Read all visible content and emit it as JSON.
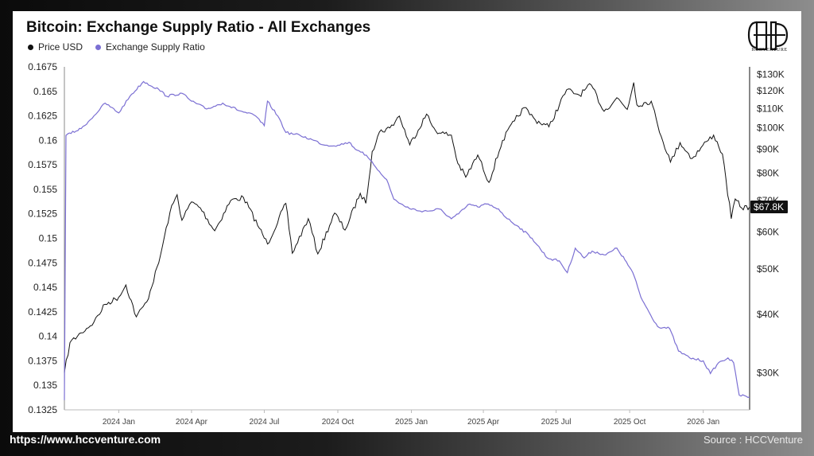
{
  "footer": {
    "url": "https://www.hccventure.com",
    "source": "Source : HCCVenture"
  },
  "logo": {
    "text": "HCCVENTURE",
    "icon": "hcc-monogram-icon"
  },
  "chart_data": {
    "type": "line",
    "title": "Bitcoin: Exchange Supply Ratio - All Exchanges",
    "legend_placement": "top-left",
    "grid": false,
    "colors": {
      "price": "#111111",
      "ratio": "#7b6fd3",
      "last_label_bg": "#111111"
    },
    "x_axis": {
      "range": [
        "2023-10-25",
        "2026-02-28"
      ],
      "ticks": [
        {
          "date": "2024-01-01",
          "label": "2024 Jan"
        },
        {
          "date": "2024-04-01",
          "label": "2024 Apr"
        },
        {
          "date": "2024-07-01",
          "label": "2024 Jul"
        },
        {
          "date": "2024-10-01",
          "label": "2024 Oct"
        },
        {
          "date": "2025-01-01",
          "label": "2025 Jan"
        },
        {
          "date": "2025-04-01",
          "label": "2025 Apr"
        },
        {
          "date": "2025-07-01",
          "label": "2025 Jul"
        },
        {
          "date": "2025-10-01",
          "label": "2025 Oct"
        },
        {
          "date": "2026-01-01",
          "label": "2026 Jan"
        }
      ]
    },
    "y_left": {
      "range": [
        0.1325,
        0.1675
      ],
      "ticks": [
        "0.1325",
        "0.135",
        "0.1375",
        "0.14",
        "0.1425",
        "0.145",
        "0.1475",
        "0.15",
        "0.1525",
        "0.155",
        "0.1575",
        "0.16",
        "0.1625",
        "0.165",
        "0.1675"
      ]
    },
    "y_right": {
      "scale": "log",
      "range": [
        25000,
        135000
      ],
      "ticks": [
        {
          "value": 30000,
          "label": "$30K"
        },
        {
          "value": 40000,
          "label": "$40K"
        },
        {
          "value": 50000,
          "label": "$50K"
        },
        {
          "value": 60000,
          "label": "$60K"
        },
        {
          "value": 70000,
          "label": "$70K"
        },
        {
          "value": 80000,
          "label": "$80K"
        },
        {
          "value": 90000,
          "label": "$90K"
        },
        {
          "value": 100000,
          "label": "$100K"
        },
        {
          "value": 110000,
          "label": "$110K"
        },
        {
          "value": 120000,
          "label": "$120K"
        },
        {
          "value": 130000,
          "label": "$130K"
        }
      ],
      "last_value_label": "$67.8K"
    },
    "series": [
      {
        "name": "Price USD",
        "axis": "right",
        "points": [
          [
            "2023-10-25",
            30000
          ],
          [
            "2023-11-01",
            34800
          ],
          [
            "2023-11-15",
            36500
          ],
          [
            "2023-12-01",
            38500
          ],
          [
            "2023-12-15",
            42000
          ],
          [
            "2024-01-01",
            43500
          ],
          [
            "2024-01-10",
            46200
          ],
          [
            "2024-01-23",
            39500
          ],
          [
            "2024-02-05",
            42500
          ],
          [
            "2024-02-20",
            51500
          ],
          [
            "2024-03-05",
            66000
          ],
          [
            "2024-03-14",
            72000
          ],
          [
            "2024-03-20",
            63500
          ],
          [
            "2024-04-01",
            69500
          ],
          [
            "2024-04-12",
            67500
          ],
          [
            "2024-04-30",
            60300
          ],
          [
            "2024-05-20",
            70000
          ],
          [
            "2024-06-05",
            71000
          ],
          [
            "2024-06-25",
            61000
          ],
          [
            "2024-07-05",
            56500
          ],
          [
            "2024-07-28",
            69000
          ],
          [
            "2024-08-05",
            54000
          ],
          [
            "2024-08-25",
            64000
          ],
          [
            "2024-09-06",
            53800
          ],
          [
            "2024-09-27",
            65800
          ],
          [
            "2024-10-10",
            60500
          ],
          [
            "2024-10-29",
            72500
          ],
          [
            "2024-11-05",
            69000
          ],
          [
            "2024-11-13",
            89000
          ],
          [
            "2024-11-22",
            98000
          ],
          [
            "2024-12-05",
            100000
          ],
          [
            "2024-12-17",
            106000
          ],
          [
            "2024-12-30",
            92000
          ],
          [
            "2025-01-20",
            107000
          ],
          [
            "2025-01-27",
            101000
          ],
          [
            "2025-02-05",
            97500
          ],
          [
            "2025-02-20",
            96500
          ],
          [
            "2025-02-28",
            84000
          ],
          [
            "2025-03-10",
            78500
          ],
          [
            "2025-03-25",
            87500
          ],
          [
            "2025-04-08",
            76500
          ],
          [
            "2025-04-25",
            94000
          ],
          [
            "2025-05-10",
            103500
          ],
          [
            "2025-05-22",
            110500
          ],
          [
            "2025-06-05",
            104000
          ],
          [
            "2025-06-22",
            100500
          ],
          [
            "2025-07-14",
            120500
          ],
          [
            "2025-07-30",
            117500
          ],
          [
            "2025-08-14",
            123500
          ],
          [
            "2025-08-30",
            108500
          ],
          [
            "2025-09-15",
            116000
          ],
          [
            "2025-09-28",
            109500
          ],
          [
            "2025-10-06",
            125000
          ],
          [
            "2025-10-10",
            112000
          ],
          [
            "2025-10-28",
            114000
          ],
          [
            "2025-11-05",
            101500
          ],
          [
            "2025-11-21",
            84500
          ],
          [
            "2025-12-03",
            93000
          ],
          [
            "2025-12-18",
            86000
          ],
          [
            "2026-01-05",
            93500
          ],
          [
            "2026-01-14",
            96500
          ],
          [
            "2026-01-25",
            88000
          ],
          [
            "2026-02-05",
            64000
          ],
          [
            "2026-02-10",
            70500
          ],
          [
            "2026-02-18",
            67500
          ],
          [
            "2026-02-28",
            67800
          ]
        ]
      },
      {
        "name": "Exchange Supply Ratio",
        "axis": "left",
        "points": [
          [
            "2023-10-25",
            0.1335
          ],
          [
            "2023-10-27",
            0.1605
          ],
          [
            "2023-11-15",
            0.1612
          ],
          [
            "2023-12-01",
            0.1625
          ],
          [
            "2023-12-15",
            0.1638
          ],
          [
            "2024-01-01",
            0.1628
          ],
          [
            "2024-01-15",
            0.1645
          ],
          [
            "2024-02-01",
            0.166
          ],
          [
            "2024-02-20",
            0.1652
          ],
          [
            "2024-03-01",
            0.1645
          ],
          [
            "2024-03-20",
            0.1648
          ],
          [
            "2024-04-01",
            0.164
          ],
          [
            "2024-04-20",
            0.1632
          ],
          [
            "2024-05-10",
            0.1638
          ],
          [
            "2024-06-01",
            0.163
          ],
          [
            "2024-06-20",
            0.1625
          ],
          [
            "2024-07-01",
            0.1615
          ],
          [
            "2024-07-05",
            0.164
          ],
          [
            "2024-07-20",
            0.1622
          ],
          [
            "2024-07-28",
            0.1608
          ],
          [
            "2024-08-15",
            0.1605
          ],
          [
            "2024-09-01",
            0.16
          ],
          [
            "2024-09-15",
            0.1595
          ],
          [
            "2024-10-01",
            0.1595
          ],
          [
            "2024-10-15",
            0.1598
          ],
          [
            "2024-10-25",
            0.159
          ],
          [
            "2024-11-01",
            0.1588
          ],
          [
            "2024-11-15",
            0.1575
          ],
          [
            "2024-12-01",
            0.156
          ],
          [
            "2024-12-10",
            0.154
          ],
          [
            "2024-12-25",
            0.1532
          ],
          [
            "2025-01-10",
            0.1528
          ],
          [
            "2025-01-25",
            0.1528
          ],
          [
            "2025-02-05",
            0.153
          ],
          [
            "2025-02-20",
            0.152
          ],
          [
            "2025-03-01",
            0.1525
          ],
          [
            "2025-03-15",
            0.1535
          ],
          [
            "2025-03-25",
            0.1532
          ],
          [
            "2025-04-05",
            0.1535
          ],
          [
            "2025-04-20",
            0.153
          ],
          [
            "2025-05-01",
            0.152
          ],
          [
            "2025-05-15",
            0.1512
          ],
          [
            "2025-06-01",
            0.15
          ],
          [
            "2025-06-20",
            0.148
          ],
          [
            "2025-07-05",
            0.1477
          ],
          [
            "2025-07-15",
            0.1465
          ],
          [
            "2025-07-25",
            0.149
          ],
          [
            "2025-08-05",
            0.148
          ],
          [
            "2025-08-15",
            0.1487
          ],
          [
            "2025-09-01",
            0.1483
          ],
          [
            "2025-09-15",
            0.149
          ],
          [
            "2025-09-25",
            0.1478
          ],
          [
            "2025-10-05",
            0.1465
          ],
          [
            "2025-10-15",
            0.144
          ],
          [
            "2025-10-25",
            0.1425
          ],
          [
            "2025-11-05",
            0.141
          ],
          [
            "2025-11-20",
            0.1408
          ],
          [
            "2025-12-01",
            0.1385
          ],
          [
            "2025-12-15",
            0.1378
          ],
          [
            "2026-01-01",
            0.1375
          ],
          [
            "2026-01-10",
            0.1362
          ],
          [
            "2026-01-20",
            0.1373
          ],
          [
            "2026-02-01",
            0.1378
          ],
          [
            "2026-02-08",
            0.1373
          ],
          [
            "2026-02-15",
            0.134
          ],
          [
            "2026-02-28",
            0.1338
          ]
        ]
      }
    ]
  }
}
